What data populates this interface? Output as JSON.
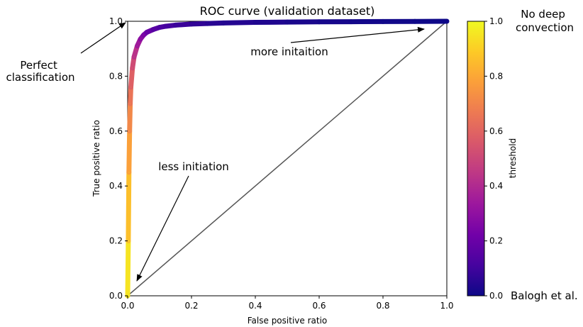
{
  "chart_data": {
    "type": "line",
    "title": "ROC curve (validation dataset)",
    "xlabel": "False positive ratio",
    "ylabel": "True positive ratio",
    "xlim": [
      0.0,
      1.0
    ],
    "ylim": [
      0.0,
      1.0
    ],
    "xticks": [
      "0.0",
      "0.2",
      "0.4",
      "0.6",
      "0.8",
      "1.0"
    ],
    "yticks": [
      "0.0",
      "0.2",
      "0.4",
      "0.6",
      "0.8",
      "1.0"
    ],
    "grid": false,
    "series": [
      {
        "x": [
          0.0,
          0.002,
          0.004,
          0.006,
          0.008,
          0.01,
          0.015,
          0.02,
          0.03,
          0.04,
          0.05,
          0.06,
          0.08,
          0.1,
          0.12,
          0.15,
          0.2,
          0.25,
          0.3,
          0.4,
          0.5,
          0.6,
          0.7,
          0.8,
          0.9,
          1.0
        ],
        "y": [
          0.0,
          0.2,
          0.45,
          0.6,
          0.7,
          0.76,
          0.83,
          0.87,
          0.91,
          0.935,
          0.95,
          0.96,
          0.97,
          0.978,
          0.982,
          0.986,
          0.99,
          0.992,
          0.994,
          0.996,
          0.997,
          0.998,
          0.9985,
          0.999,
          0.9995,
          1.0
        ],
        "threshold": [
          1.0,
          0.9,
          0.82,
          0.74,
          0.68,
          0.62,
          0.55,
          0.48,
          0.38,
          0.31,
          0.26,
          0.22,
          0.17,
          0.14,
          0.12,
          0.1,
          0.08,
          0.06,
          0.05,
          0.04,
          0.03,
          0.02,
          0.015,
          0.01,
          0.005,
          0.0
        ]
      },
      {
        "x": [
          0.0,
          1.0
        ],
        "y": [
          0.0,
          1.0
        ]
      }
    ],
    "colorbar": {
      "label": "threshold",
      "range": [
        0.0,
        1.0
      ],
      "ticks": [
        "0.0",
        "0.2",
        "0.4",
        "0.6",
        "0.8",
        "1.0"
      ],
      "colormap": [
        "#0d0887",
        "#46039f",
        "#7201a8",
        "#9c179e",
        "#bd3786",
        "#d8576b",
        "#ed7953",
        "#fb9f3a",
        "#fdca26",
        "#f0f921"
      ],
      "top_label": [
        "No deep",
        "convection"
      ],
      "bottom_label": "Balogh et al."
    },
    "annotations": {
      "perfect": [
        "Perfect",
        "classification"
      ],
      "more": "more initaition",
      "less": "less initiation"
    }
  }
}
